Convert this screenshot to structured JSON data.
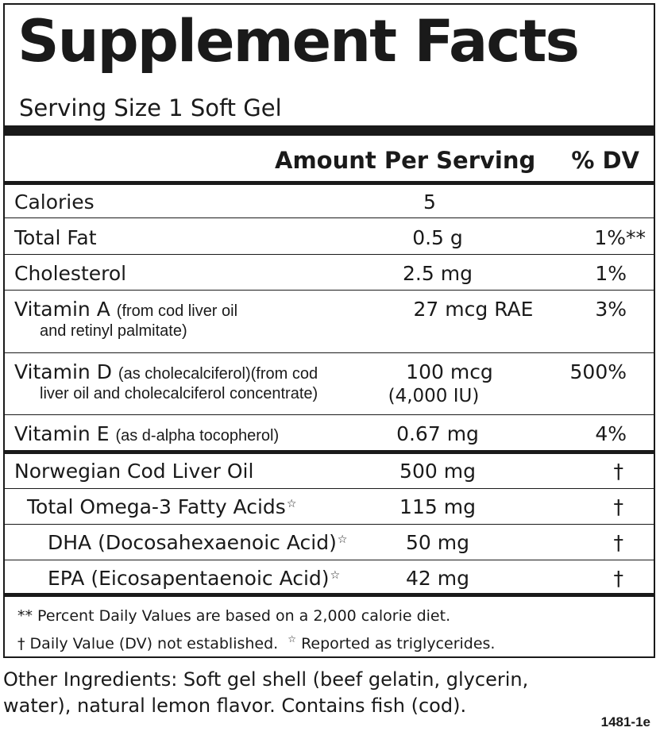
{
  "title": "Supplement Facts",
  "serving_size": "Serving Size 1 Soft Gel",
  "header": {
    "amount": "Amount Per Serving",
    "dv": "% DV"
  },
  "nutrients": [
    {
      "name": "Calories",
      "amount": "5",
      "dv": ""
    },
    {
      "name": "Total Fat",
      "amount": "0.5 g",
      "dv": "1%**"
    },
    {
      "name": "Cholesterol",
      "amount": "2.5 mg",
      "dv": "1%"
    },
    {
      "name": "Vitamin A",
      "detail": "(from cod liver oil",
      "detail2": "and retinyl palmitate)",
      "amount": "27 mcg RAE",
      "dv": "3%"
    },
    {
      "name": "Vitamin D",
      "detail": "(as cholecalciferol)(from cod",
      "detail2": "liver oil and cholecalciferol concentrate)",
      "amount": "100 mcg",
      "amount2": "(4,000 IU)",
      "dv": "500%"
    },
    {
      "name": "Vitamin E",
      "detail": "(as d-alpha tocopherol)",
      "amount": "0.67 mg",
      "dv": "4%"
    }
  ],
  "oils": [
    {
      "name": "Norwegian Cod Liver Oil",
      "amount": "500 mg",
      "dv": "†"
    },
    {
      "name": "Total Omega-3 Fatty Acids",
      "star": "☆",
      "amount": "115 mg",
      "dv": "†"
    },
    {
      "name": "DHA (Docosahexaenoic Acid)",
      "star": "☆",
      "amount": "50 mg",
      "dv": "†"
    },
    {
      "name": "EPA (Eicosapentaenoic Acid)",
      "star": "☆",
      "amount": "42 mg",
      "dv": "†"
    }
  ],
  "footnotes": {
    "line1": "** Percent Daily Values are based on a 2,000 calorie diet.",
    "line2a": "† Daily Value (DV) not established.",
    "star": "☆",
    "line2b": "Reported as triglycerides."
  },
  "other_ingredients": {
    "line1": "Other Ingredients:  Soft gel shell (beef gelatin, glycerin,",
    "line2": "water), natural lemon flavor.  Contains fish (cod)."
  },
  "code": "1481-1e"
}
